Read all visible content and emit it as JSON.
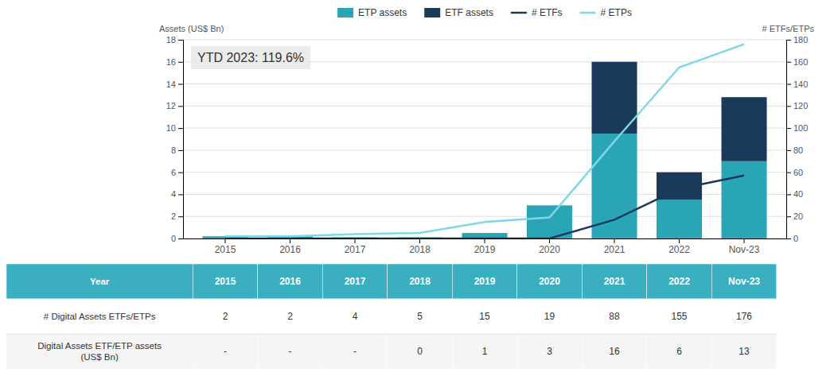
{
  "chart_data": {
    "type": "bar",
    "categories": [
      "2015",
      "2016",
      "2017",
      "2018",
      "2019",
      "2020",
      "2021",
      "2022",
      "Nov-23"
    ],
    "series": [
      {
        "name": "ETP assets",
        "type": "bar",
        "color": "#2aa5b5",
        "values": [
          0.2,
          0.2,
          0.1,
          0.1,
          0.5,
          3.0,
          9.5,
          3.5,
          7.0
        ]
      },
      {
        "name": "ETF assets",
        "type": "bar",
        "color": "#1a3a5c",
        "values": [
          0,
          0,
          0,
          0,
          0,
          0,
          6.5,
          2.5,
          5.8
        ]
      },
      {
        "name": "# ETFs",
        "type": "line",
        "color": "#1a3a5c",
        "axis": "y2",
        "values": [
          0,
          0,
          0,
          0,
          0,
          0,
          17,
          45,
          57
        ]
      },
      {
        "name": "# ETPs",
        "type": "line",
        "color": "#7fd7e8",
        "axis": "y2",
        "values": [
          2,
          2,
          4,
          5,
          15,
          19,
          88,
          155,
          176
        ]
      }
    ],
    "stacked": true,
    "ylim": [
      0,
      18
    ],
    "yticks": [
      0,
      2,
      4,
      6,
      8,
      10,
      12,
      14,
      16,
      18
    ],
    "y2lim": [
      0,
      180
    ],
    "y2ticks": [
      0,
      20,
      40,
      60,
      80,
      100,
      120,
      140,
      160,
      180
    ],
    "ylabel": "Assets (US$ Bn)",
    "y2label": "# ETFs/ETPs",
    "annotation": "YTD 2023: 119.6%",
    "grid": true,
    "legend": "top",
    "table": {
      "header": "Year",
      "color": "#3aafbf",
      "rows": [
        {
          "label": "# Digital Assets ETFs/ETPs",
          "values": [
            "2",
            "2",
            "4",
            "5",
            "15",
            "19",
            "88",
            "155",
            "176"
          ]
        },
        {
          "label": "Digital Assets ETF/ETP assets\n(US$ Bn)",
          "values": [
            "-",
            "-",
            "-",
            "0",
            "1",
            "3",
            "16",
            "6",
            "13"
          ]
        }
      ]
    }
  }
}
